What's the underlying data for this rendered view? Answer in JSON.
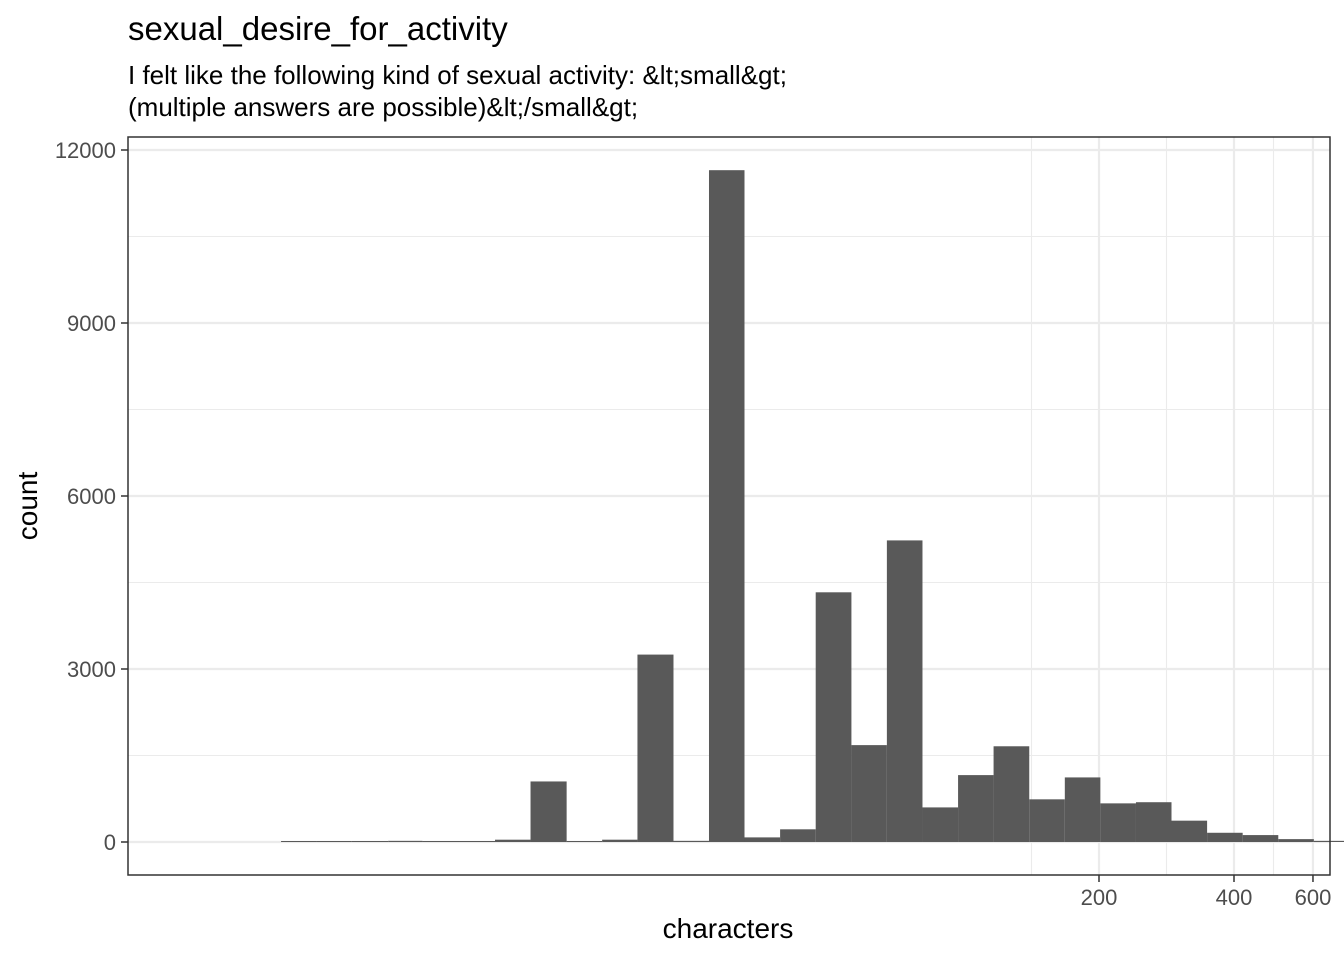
{
  "title": "sexual_desire_for_activity",
  "subtitle_lines": [
    "I felt like the following kind of sexual activity: &lt;small&gt;",
    "(multiple answers are possible)&lt;/small&gt;"
  ],
  "chart_data": {
    "type": "bar",
    "title": "sexual_desire_for_activity",
    "subtitle": "I felt like the following kind of sexual activity: &lt;small&gt; (multiple answers are possible)&lt;/small&gt;",
    "xlabel": "characters",
    "ylabel": "count",
    "x_scale": "log10",
    "ylim": [
      -580,
      12050
    ],
    "y_ticks": [
      0,
      3000,
      6000,
      9000,
      12000
    ],
    "x_ticks": [
      200,
      400,
      600
    ],
    "grid": true,
    "bins": [
      {
        "x0": 3.0,
        "x1": 3.6,
        "count": 4
      },
      {
        "x0": 3.6,
        "x1": 4.3,
        "count": 4
      },
      {
        "x0": 4.3,
        "x1": 5.2,
        "count": 8
      },
      {
        "x0": 5.2,
        "x1": 6.2,
        "count": 20
      },
      {
        "x0": 6.2,
        "x1": 7.5,
        "count": 6
      },
      {
        "x0": 7.5,
        "x1": 9.0,
        "count": 8
      },
      {
        "x0": 9.0,
        "x1": 10.8,
        "count": 40
      },
      {
        "x0": 10.8,
        "x1": 13.0,
        "count": 1050
      },
      {
        "x0": 13.0,
        "x1": 15.6,
        "count": 10
      },
      {
        "x0": 15.6,
        "x1": 18.7,
        "count": 40
      },
      {
        "x0": 18.7,
        "x1": 22.5,
        "count": 3250
      },
      {
        "x0": 22.5,
        "x1": 27.0,
        "count": 20
      },
      {
        "x0": 27.0,
        "x1": 32.4,
        "count": 11650
      },
      {
        "x0": 32.4,
        "x1": 38.9,
        "count": 80
      },
      {
        "x0": 38.9,
        "x1": 46.7,
        "count": 220
      },
      {
        "x0": 46.7,
        "x1": 56.1,
        "count": 4330
      },
      {
        "x0": 56.1,
        "x1": 67.3,
        "count": 1680
      },
      {
        "x0": 67.3,
        "x1": 80.8,
        "count": 5230
      },
      {
        "x0": 80.8,
        "x1": 97.0,
        "count": 600
      },
      {
        "x0": 97.0,
        "x1": 116.4,
        "count": 1160
      },
      {
        "x0": 116.4,
        "x1": 139.8,
        "count": 1660
      },
      {
        "x0": 139.8,
        "x1": 167.8,
        "count": 740
      },
      {
        "x0": 167.8,
        "x1": 201.4,
        "count": 1120
      },
      {
        "x0": 201.4,
        "x1": 241.8,
        "count": 670
      },
      {
        "x0": 241.8,
        "x1": 290.2,
        "count": 690
      },
      {
        "x0": 290.2,
        "x1": 348.4,
        "count": 370
      },
      {
        "x0": 348.4,
        "x1": 418.2,
        "count": 160
      },
      {
        "x0": 418.2,
        "x1": 502.1,
        "count": 120
      },
      {
        "x0": 502.1,
        "x1": 602.7,
        "count": 50
      },
      {
        "x0": 602.7,
        "x1": 723.5,
        "count": 20
      }
    ],
    "bar_color": "#595959"
  }
}
